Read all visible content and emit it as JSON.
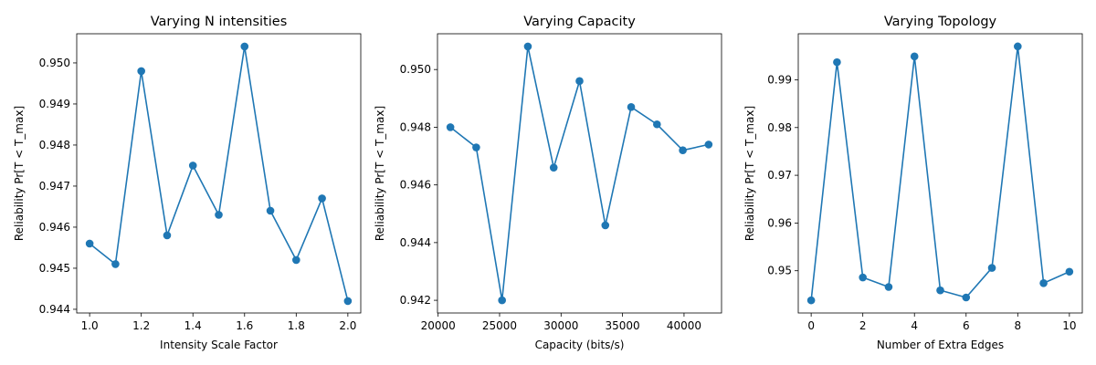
{
  "colors": {
    "series": "#1f77b4",
    "axis": "#000000",
    "background": "#ffffff"
  },
  "chart_data": [
    {
      "type": "line",
      "title": "Varying N intensities",
      "xlabel": "Intensity Scale Factor",
      "ylabel": "Reliability Pr[T < T_max]",
      "x": [
        1.0,
        1.1,
        1.2,
        1.3,
        1.4,
        1.5,
        1.6,
        1.7,
        1.8,
        1.9,
        2.0
      ],
      "values": [
        0.9456,
        0.9451,
        0.9498,
        0.9458,
        0.9475,
        0.9463,
        0.9504,
        0.9464,
        0.9452,
        0.9467,
        0.9442
      ],
      "xlim": [
        0.95,
        2.05
      ],
      "ylim": [
        0.94391,
        0.95071
      ],
      "xticks": [
        1.0,
        1.2,
        1.4,
        1.6,
        1.8,
        2.0
      ],
      "xtick_labels": [
        "1.0",
        "1.2",
        "1.4",
        "1.6",
        "1.8",
        "2.0"
      ],
      "yticks": [
        0.944,
        0.945,
        0.946,
        0.947,
        0.948,
        0.949,
        0.95
      ],
      "ytick_labels": [
        "0.944",
        "0.945",
        "0.946",
        "0.947",
        "0.948",
        "0.949",
        "0.950"
      ],
      "marker": "circle",
      "grid": false
    },
    {
      "type": "line",
      "title": "Varying Capacity",
      "xlabel": "Capacity (bits/s)",
      "ylabel": "Reliability Pr[T < T_max]",
      "x": [
        21000,
        23100,
        25200,
        27300,
        29400,
        31500,
        33600,
        35700,
        37800,
        39900,
        42000
      ],
      "values": [
        0.948,
        0.9473,
        0.942,
        0.9508,
        0.9466,
        0.9496,
        0.9446,
        0.9487,
        0.9481,
        0.9472,
        0.9474
      ],
      "xlim": [
        19950,
        43050
      ],
      "ylim": [
        0.94156,
        0.95124
      ],
      "xticks": [
        20000,
        25000,
        30000,
        35000,
        40000
      ],
      "xtick_labels": [
        "20000",
        "25000",
        "30000",
        "35000",
        "40000"
      ],
      "yticks": [
        0.942,
        0.944,
        0.946,
        0.948,
        0.95
      ],
      "ytick_labels": [
        "0.942",
        "0.944",
        "0.946",
        "0.948",
        "0.950"
      ],
      "marker": "circle",
      "grid": false
    },
    {
      "type": "line",
      "title": "Varying Topology",
      "xlabel": "Number of Extra Edges",
      "ylabel": "Reliability Pr[T < T_max]",
      "x": [
        0,
        1,
        2,
        3,
        4,
        5,
        6,
        7,
        8,
        9,
        10
      ],
      "values": [
        0.9438,
        0.9937,
        0.9486,
        0.9466,
        0.9949,
        0.9459,
        0.9444,
        0.9506,
        0.997,
        0.9474,
        0.9498
      ],
      "xlim": [
        -0.5,
        10.5
      ],
      "ylim": [
        0.94115,
        0.99965
      ],
      "xticks": [
        0,
        2,
        4,
        6,
        8,
        10
      ],
      "xtick_labels": [
        "0",
        "2",
        "4",
        "6",
        "8",
        "10"
      ],
      "yticks": [
        0.95,
        0.96,
        0.97,
        0.98,
        0.99
      ],
      "ytick_labels": [
        "0.95",
        "0.96",
        "0.97",
        "0.98",
        "0.99"
      ],
      "marker": "circle",
      "grid": false
    }
  ]
}
